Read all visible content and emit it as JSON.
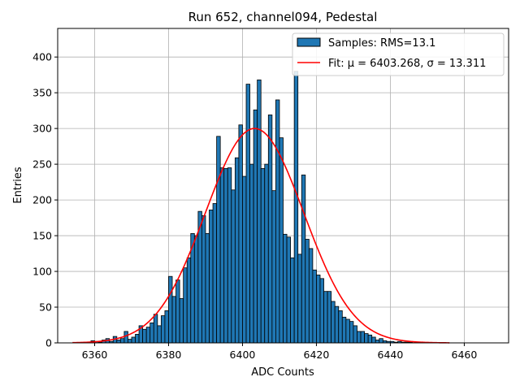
{
  "chart_data": {
    "type": "bar",
    "title": "Run 652, channel094, Pedestal",
    "xlabel": "ADC Counts",
    "ylabel": "Entries",
    "xlim": [
      6350,
      6472
    ],
    "ylim": [
      0,
      440
    ],
    "xticks": [
      6360,
      6380,
      6400,
      6420,
      6440,
      6460
    ],
    "yticks": [
      0,
      50,
      100,
      150,
      200,
      250,
      300,
      350,
      400
    ],
    "grid": true,
    "legend_position": "top-right",
    "bin_width": 1,
    "histogram": {
      "name": "Samples: RMS=13.1",
      "color": "#1f77b4",
      "edgecolor": "#000000",
      "bins": [
        6357,
        6358,
        6359,
        6360,
        6361,
        6362,
        6363,
        6364,
        6365,
        6366,
        6367,
        6368,
        6369,
        6370,
        6371,
        6372,
        6373,
        6374,
        6375,
        6376,
        6377,
        6378,
        6379,
        6380,
        6381,
        6382,
        6383,
        6384,
        6385,
        6386,
        6387,
        6388,
        6389,
        6390,
        6391,
        6392,
        6393,
        6394,
        6395,
        6396,
        6397,
        6398,
        6399,
        6400,
        6401,
        6402,
        6403,
        6404,
        6405,
        6406,
        6407,
        6408,
        6409,
        6410,
        6411,
        6412,
        6413,
        6414,
        6415,
        6416,
        6417,
        6418,
        6419,
        6420,
        6421,
        6422,
        6423,
        6424,
        6425,
        6426,
        6427,
        6428,
        6429,
        6430,
        6431,
        6432,
        6433,
        6434,
        6435,
        6436,
        6437,
        6438,
        6439,
        6440,
        6441,
        6442,
        6443,
        6444,
        6445
      ],
      "counts": [
        1,
        0,
        3,
        2,
        1,
        4,
        6,
        2,
        9,
        4,
        6,
        16,
        5,
        8,
        12,
        24,
        19,
        22,
        28,
        40,
        24,
        38,
        45,
        93,
        65,
        88,
        62,
        105,
        119,
        153,
        150,
        184,
        178,
        153,
        186,
        195,
        289,
        245,
        244,
        245,
        214,
        259,
        305,
        233,
        362,
        250,
        326,
        368,
        244,
        250,
        319,
        213,
        340,
        287,
        152,
        148,
        119,
        380,
        124,
        235,
        145,
        132,
        102,
        95,
        90,
        72,
        72,
        58,
        51,
        45,
        36,
        33,
        30,
        24,
        16,
        16,
        13,
        11,
        8,
        4,
        6,
        3,
        2,
        2,
        1,
        2,
        1,
        1,
        1
      ]
    },
    "fit": {
      "name": "Fit: μ = 6403.268, σ = 13.311",
      "color": "#ff0000",
      "type": "gaussian",
      "mu": 6403.268,
      "sigma": 13.311,
      "amplitude": 300,
      "x_range": [
        6354,
        6456
      ]
    }
  }
}
